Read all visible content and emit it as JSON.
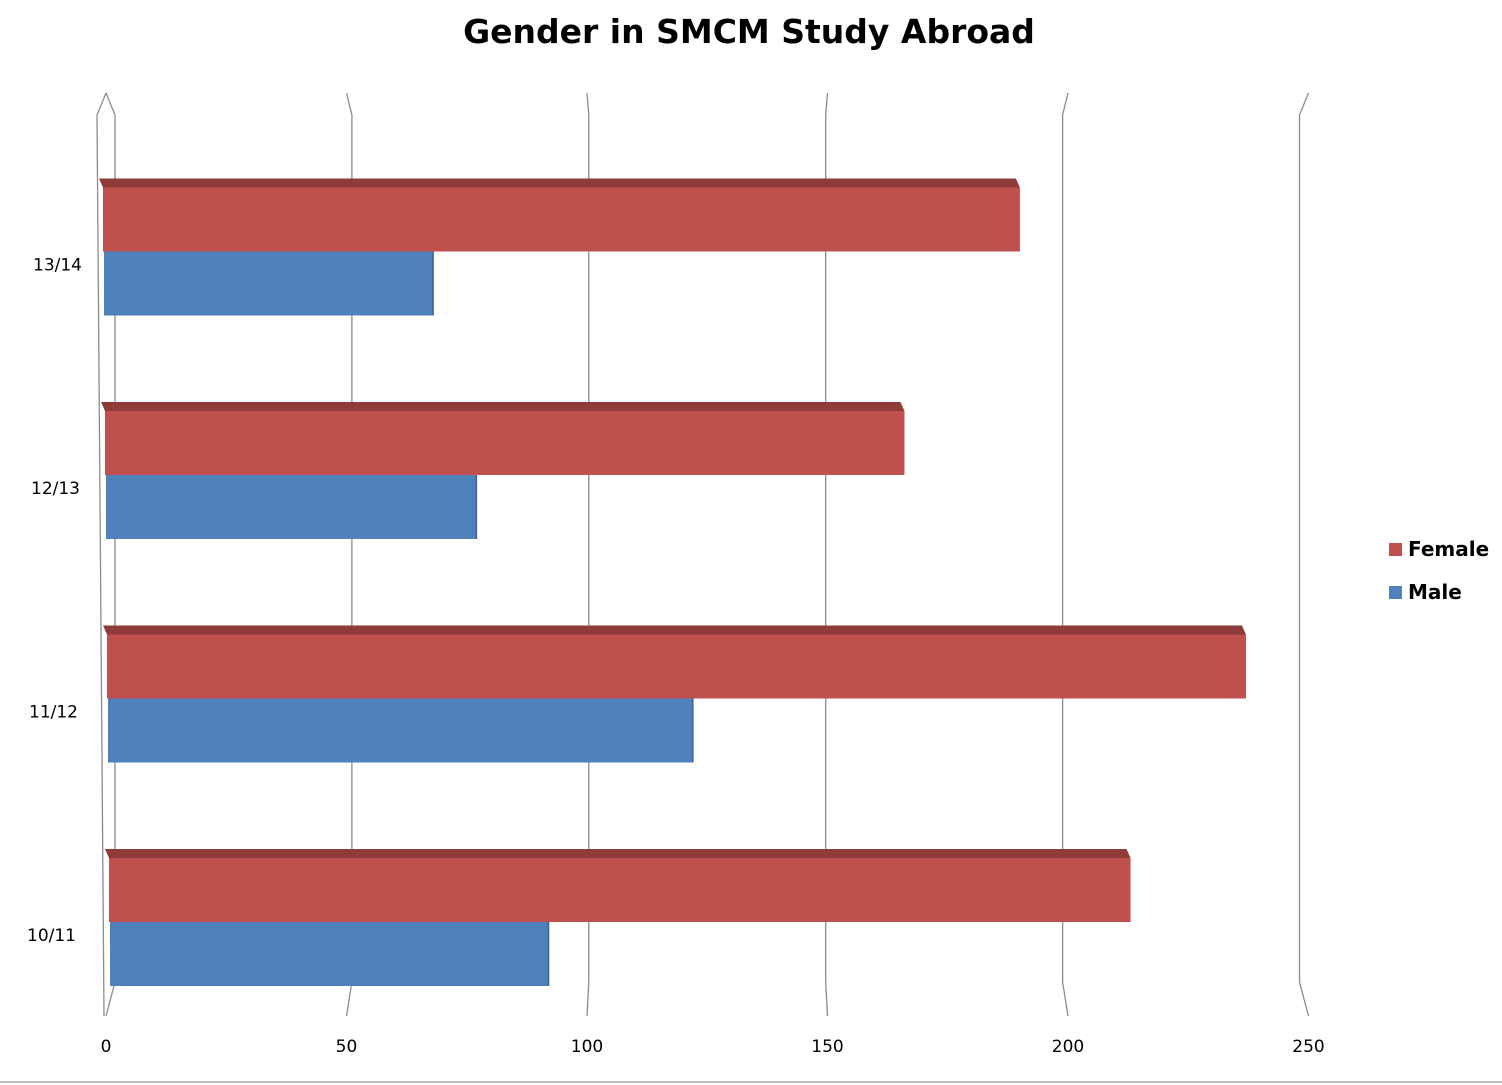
{
  "chart_data": {
    "type": "bar",
    "orientation": "horizontal",
    "style": "3d-clustered",
    "title": "Gender in SMCM Study Abroad",
    "xlabel": "",
    "ylabel": "",
    "categories": [
      "10/11",
      "11/12",
      "12/13",
      "13/14"
    ],
    "series": [
      {
        "name": "Male",
        "color": "#4f81bd",
        "values": [
          92,
          122,
          77,
          68
        ]
      },
      {
        "name": "Female",
        "color": "#c0504d",
        "values": [
          213,
          237,
          166,
          190
        ]
      }
    ],
    "xlim": [
      0,
      250
    ],
    "xticks": [
      "0",
      "50",
      "100",
      "150",
      "200",
      "250"
    ],
    "grid": true,
    "legend": {
      "position": "right",
      "entries": [
        {
          "label": "Female",
          "color": "#c0504d"
        },
        {
          "label": "Male",
          "color": "#4f81bd"
        }
      ]
    }
  }
}
